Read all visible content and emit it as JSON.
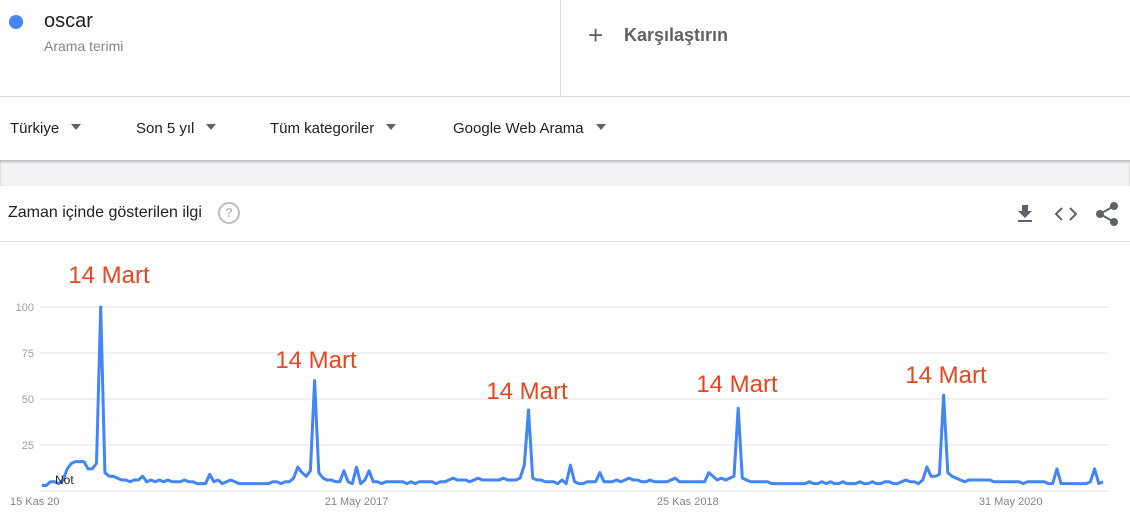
{
  "header": {
    "term_type": "Arama terimi",
    "compare": "Karşılaştırın"
  },
  "filters": [
    "Türkiye",
    "Son 5 yıl",
    "Tüm kategoriler",
    "Google Web Arama"
  ],
  "panel": {
    "title": "Zaman içinde gösterilen ilgi"
  },
  "chart_data": {
    "type": "line",
    "categories": [
      "15 Kas 20",
      null,
      null,
      null,
      null,
      null,
      null,
      null,
      null,
      null,
      null,
      null,
      null,
      null,
      null,
      null,
      null,
      null,
      null,
      null,
      null,
      null,
      null,
      null,
      null,
      null,
      null,
      null,
      null,
      null,
      null,
      null,
      null,
      null,
      null,
      null,
      null,
      null,
      null,
      null,
      null,
      null,
      null,
      null,
      null,
      null,
      null,
      null,
      null,
      null,
      null,
      null,
      null,
      null,
      null,
      null,
      null,
      null,
      null,
      null,
      null,
      null,
      null,
      null,
      null,
      null,
      null,
      null,
      null,
      null,
      null,
      null,
      null,
      null,
      null,
      "21 May 2017",
      null,
      null,
      null,
      null,
      null,
      null,
      null,
      null,
      null,
      null,
      null,
      null,
      null,
      null,
      null,
      null,
      null,
      null,
      null,
      null,
      null,
      null,
      null,
      null,
      null,
      null,
      null,
      null,
      null,
      null,
      null,
      null,
      null,
      null,
      null,
      null,
      null,
      null,
      null,
      null,
      null,
      null,
      null,
      null,
      null,
      null,
      null,
      null,
      null,
      null,
      null,
      null,
      null,
      null,
      null,
      null,
      null,
      null,
      null,
      null,
      null,
      null,
      null,
      null,
      null,
      null,
      null,
      null,
      null,
      null,
      null,
      null,
      null,
      null,
      null,
      null,
      null,
      null,
      "25 Kas 2018",
      null,
      null,
      null,
      null,
      null,
      null,
      null,
      null,
      null,
      null,
      null,
      null,
      null,
      null,
      null,
      null,
      null,
      null,
      null,
      null,
      null,
      null,
      null,
      null,
      null,
      null,
      null,
      null,
      null,
      null,
      null,
      null,
      null,
      null,
      null,
      null,
      null,
      null,
      null,
      null,
      null,
      null,
      null,
      null,
      null,
      null,
      null,
      null,
      null,
      null,
      null,
      null,
      null,
      null,
      null,
      null,
      null,
      null,
      null,
      null,
      null,
      null,
      null,
      null,
      null,
      null,
      null,
      null,
      null,
      null,
      null,
      null,
      null,
      null,
      null,
      null,
      "31 May 2020",
      null,
      null,
      null,
      null,
      null,
      null,
      null,
      null,
      null,
      null,
      null,
      null,
      null,
      null,
      null,
      null,
      null,
      null,
      null,
      null,
      null,
      null
    ],
    "series": [
      {
        "name": "oscar",
        "color": "#4285f4",
        "values": [
          3,
          3,
          5,
          5,
          4,
          6,
          12,
          15,
          16,
          16,
          16,
          12,
          12,
          15,
          100,
          10,
          8,
          8,
          7,
          6,
          6,
          5,
          6,
          6,
          8,
          5,
          6,
          5,
          6,
          5,
          6,
          5,
          5,
          5,
          6,
          5,
          5,
          4,
          4,
          4,
          9,
          5,
          6,
          4,
          5,
          6,
          5,
          4,
          4,
          4,
          4,
          4,
          4,
          4,
          4,
          5,
          5,
          4,
          5,
          5,
          7,
          13,
          10,
          8,
          11,
          60,
          10,
          7,
          6,
          6,
          5,
          5,
          11,
          5,
          4,
          13,
          4,
          6,
          11,
          5,
          5,
          4,
          5,
          5,
          5,
          5,
          5,
          4,
          5,
          4,
          5,
          5,
          5,
          5,
          4,
          5,
          5,
          6,
          7,
          6,
          6,
          6,
          5,
          6,
          7,
          6,
          6,
          6,
          6,
          6,
          7,
          6,
          6,
          6,
          7,
          14,
          44,
          7,
          6,
          6,
          5,
          5,
          5,
          4,
          6,
          4,
          14,
          5,
          4,
          4,
          5,
          5,
          5,
          10,
          5,
          5,
          5,
          6,
          5,
          6,
          7,
          6,
          6,
          5,
          5,
          6,
          5,
          5,
          5,
          5,
          6,
          7,
          5,
          5,
          5,
          5,
          5,
          5,
          5,
          10,
          8,
          6,
          7,
          6,
          7,
          8,
          45,
          7,
          6,
          5,
          5,
          5,
          5,
          5,
          4,
          4,
          4,
          4,
          4,
          4,
          4,
          4,
          4,
          5,
          4,
          4,
          5,
          4,
          5,
          4,
          4,
          5,
          4,
          4,
          4,
          5,
          4,
          4,
          5,
          4,
          4,
          5,
          5,
          4,
          4,
          5,
          6,
          5,
          5,
          4,
          6,
          13,
          8,
          8,
          9,
          52,
          10,
          8,
          7,
          6,
          5,
          6,
          6,
          6,
          6,
          6,
          6,
          5,
          5,
          5,
          5,
          5,
          5,
          5,
          4,
          5,
          5,
          5,
          5,
          5,
          4,
          4,
          12,
          4,
          4,
          4,
          4,
          4,
          4,
          4,
          5,
          12,
          4,
          5
        ]
      }
    ],
    "ylim": [
      0,
      100
    ],
    "yticks": [
      25,
      50,
      75,
      100
    ],
    "grid": true,
    "annotations": [
      "14 Mart",
      "14 Mart",
      "14 Mart",
      "14 Mart",
      "14 Mart"
    ],
    "note": "Not",
    "annotation_color": "#e8461e"
  }
}
